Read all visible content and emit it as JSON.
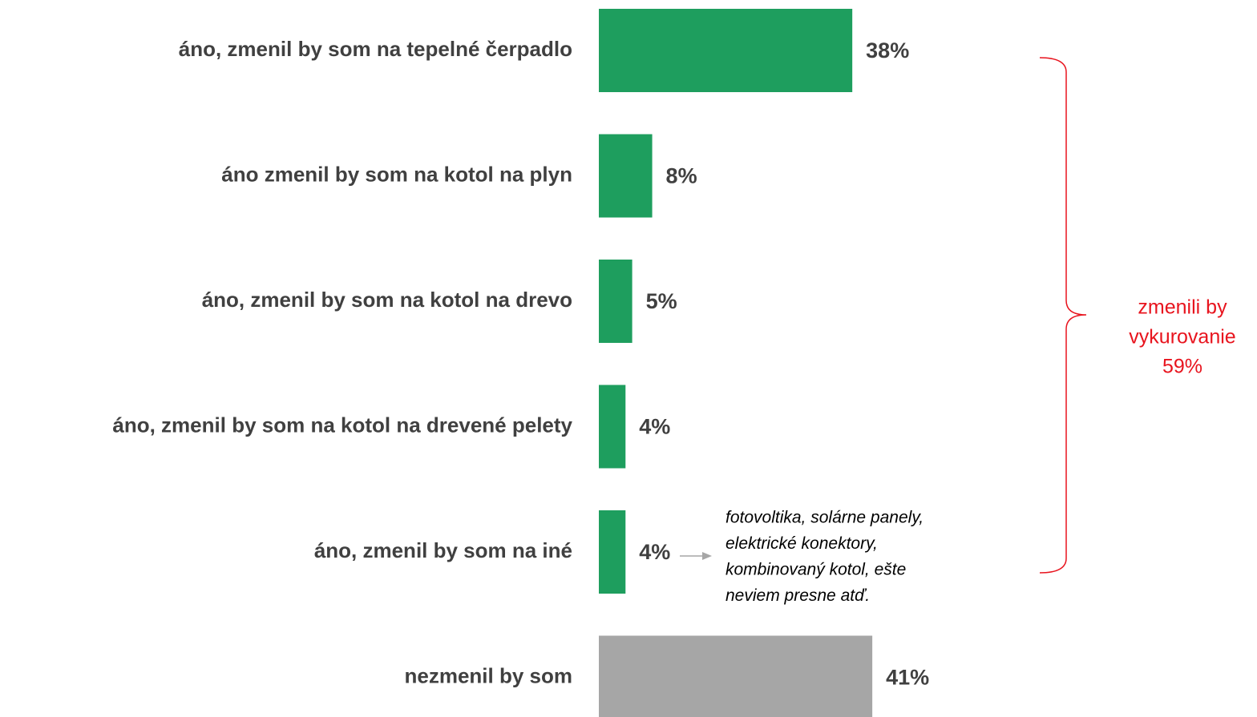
{
  "chart_data": {
    "type": "bar",
    "orientation": "horizontal",
    "categories": [
      "áno, zmenil by som na tepelné čerpadlo",
      "áno zmenil by som na kotol na plyn",
      "áno, zmenil by som na kotol na drevo",
      "áno, zmenil by som na kotol na drevené pelety",
      "áno, zmenil by som na iné",
      "nezmenil by som"
    ],
    "values": [
      38,
      8,
      5,
      4,
      4,
      41
    ],
    "value_labels": [
      "38%",
      "8%",
      "5%",
      "4%",
      "4%",
      "41%"
    ],
    "colors": [
      "#1e9e5e",
      "#1e9e5e",
      "#1e9e5e",
      "#1e9e5e",
      "#1e9e5e",
      "#a6a6a6"
    ],
    "annotations": {
      "bracket": {
        "lines": [
          "zmenili by",
          "vykurovanie",
          "59%"
        ],
        "color": "#e8141e"
      },
      "note": {
        "lines": [
          "fotovoltika, solárne panely,",
          "elektrické konektory,",
          "kombinovaný kotol, ešte",
          "neviem presne  atď."
        ]
      }
    }
  }
}
